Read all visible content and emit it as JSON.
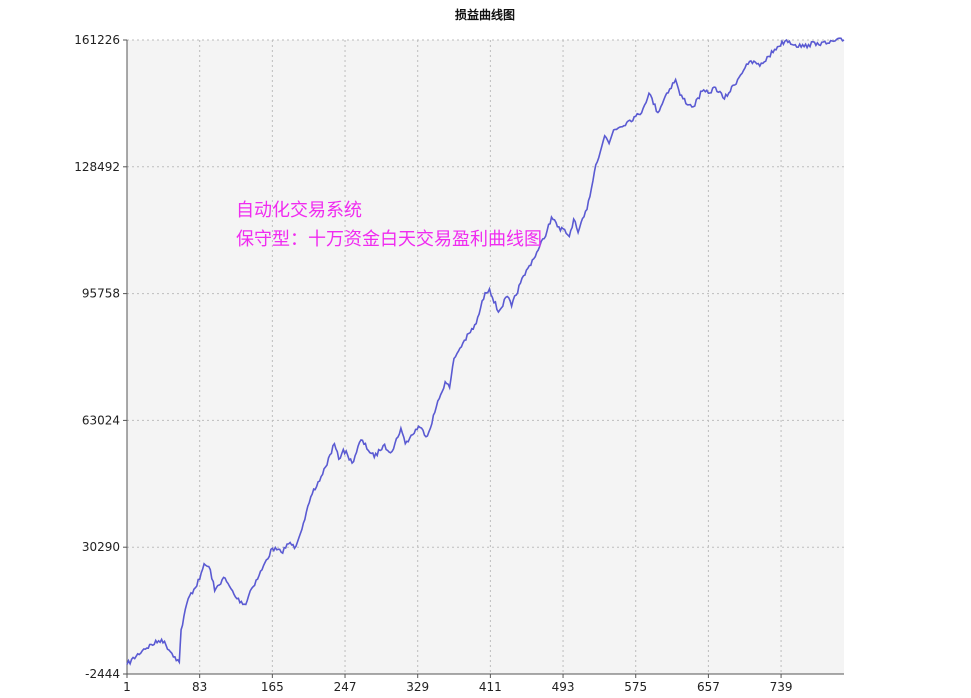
{
  "chart_data": {
    "type": "line",
    "title": "损益曲线图",
    "xlabel": "",
    "ylabel": "",
    "xlim": [
      1,
      810
    ],
    "ylim": [
      -2444,
      161226
    ],
    "x_ticks": [
      1,
      83,
      165,
      247,
      329,
      411,
      493,
      575,
      657,
      739
    ],
    "y_ticks": [
      -2444,
      30290,
      63024,
      95758,
      128492,
      161226
    ],
    "grid": true,
    "annotations": [
      "自动化交易系统",
      "保守型：十万资金白天交易盈利曲线图"
    ],
    "series": [
      {
        "x": [
          1,
          20,
          40,
          55,
          60,
          62,
          70,
          83,
          88,
          95,
          100,
          110,
          125,
          135,
          140,
          150,
          165,
          175,
          185,
          190,
          200,
          210,
          215,
          225,
          235,
          240,
          245,
          250,
          255,
          265,
          280,
          290,
          300,
          310,
          315,
          330,
          340,
          350,
          360,
          365,
          370,
          380,
          395,
          405,
          410,
          420,
          430,
          435,
          445,
          455,
          465,
          475,
          480,
          490,
          493,
          500,
          505,
          510,
          520,
          530,
          540,
          545,
          550,
          565,
          575,
          580,
          590,
          600,
          610,
          620,
          625,
          635,
          640,
          650,
          657,
          665,
          675,
          690,
          700,
          710,
          715,
          725,
          735,
          745,
          755,
          765,
          770,
          780,
          790,
          800,
          810
        ],
        "values": [
          0,
          4000,
          6500,
          2000,
          600,
          9000,
          17000,
          22000,
          26000,
          24500,
          19000,
          22500,
          17000,
          15500,
          19000,
          23000,
          30000,
          29000,
          31500,
          30000,
          36500,
          44000,
          46000,
          51000,
          57000,
          53000,
          55500,
          54000,
          52000,
          58000,
          53500,
          56500,
          55000,
          61000,
          57000,
          61500,
          59000,
          66500,
          73000,
          71500,
          79000,
          83000,
          88000,
          96000,
          97000,
          91000,
          95000,
          92500,
          98500,
          103000,
          107000,
          112000,
          115500,
          112000,
          112500,
          110500,
          115000,
          111500,
          117500,
          129000,
          136500,
          134500,
          138000,
          140000,
          141500,
          142000,
          147500,
          142500,
          147500,
          151000,
          147000,
          144500,
          144000,
          148000,
          147500,
          149000,
          146000,
          151000,
          155000,
          155500,
          154500,
          157000,
          159500,
          161226,
          160000,
          159500,
          160000,
          160500,
          160226,
          161000,
          161226
        ]
      }
    ],
    "line_color": "#5a5ad2",
    "annotation_color": "#f02bf0",
    "plot_bg": "#f4f4f4",
    "grid_color": "#bdbdbd"
  }
}
